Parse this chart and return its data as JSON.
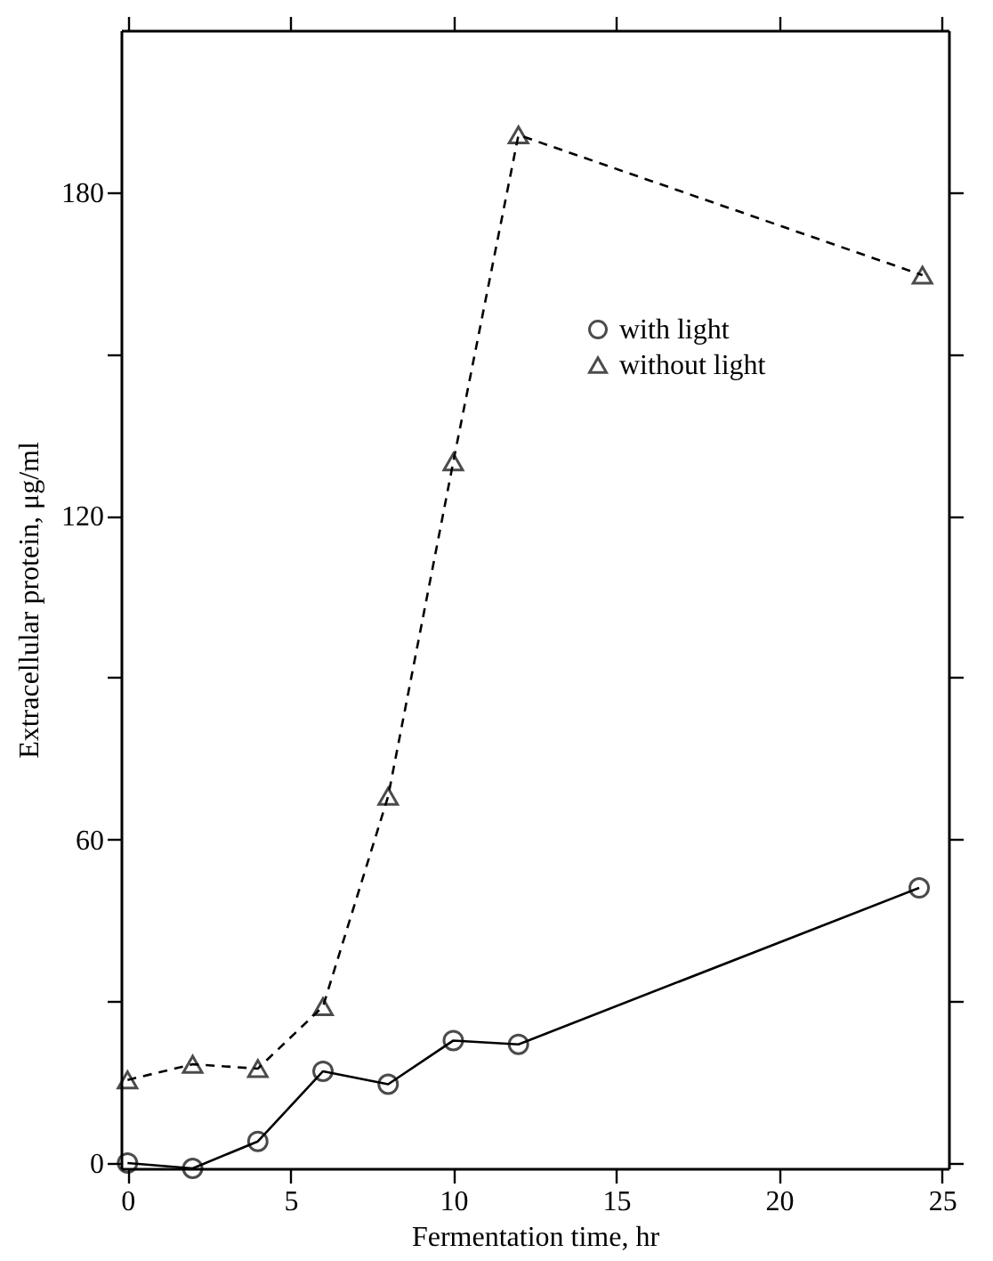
{
  "chart_data": {
    "type": "line",
    "xlabel": "Fermentation time, hr",
    "ylabel": "Extracellular protein, μg/ml",
    "xlim": [
      -0.2,
      25.2
    ],
    "xticks": [
      0,
      5,
      10,
      15,
      20,
      25
    ],
    "ylim": [
      -1,
      210
    ],
    "yticks": [
      0,
      {
        "value": 30,
        "label": null
      },
      60,
      {
        "value": 90,
        "label": null
      },
      120,
      {
        "value": 150,
        "label": null
      },
      180
    ],
    "legend": "top right",
    "grid": false,
    "series": [
      {
        "name": "with light",
        "color": "#000000",
        "marker": "circle",
        "line_style": "solid",
        "x": [
          0,
          2,
          4,
          6,
          8,
          10,
          12,
          24.3
        ],
        "values": [
          0,
          -1,
          4,
          17,
          14.6,
          22.7,
          22,
          51
        ]
      },
      {
        "name": "without light",
        "color": "#000000",
        "marker": "triangle",
        "line_style": "dashed",
        "x": [
          0,
          2,
          4,
          6,
          8,
          10,
          12,
          24.4
        ],
        "values": [
          15.4,
          18.3,
          17.5,
          29,
          68,
          130,
          190.6,
          164.6
        ]
      }
    ]
  }
}
